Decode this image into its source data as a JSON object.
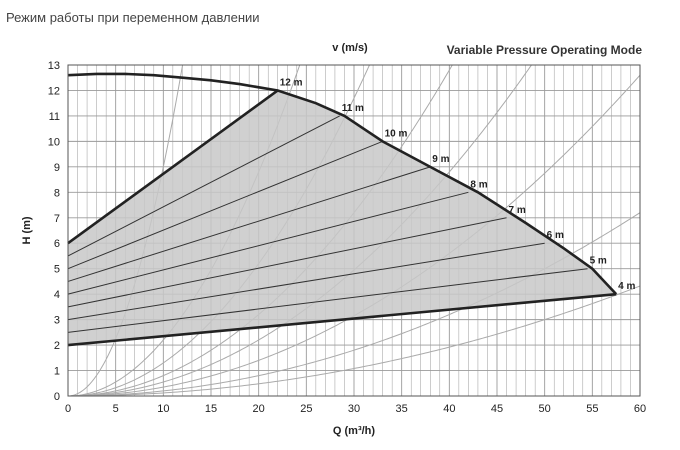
{
  "header": {
    "caption": "Режим работы при переменном давлении",
    "mode_title": "Variable Pressure Operating Mode"
  },
  "chart_data": {
    "type": "line",
    "xlabel": "Q (m³/h)",
    "ylabel": "H (m)",
    "top_axis_label": "v (m/s)",
    "xlim": [
      0,
      60
    ],
    "ylim": [
      0,
      13
    ],
    "x_ticks": [
      0,
      5,
      10,
      15,
      20,
      25,
      30,
      35,
      40,
      45,
      50,
      55,
      60
    ],
    "y_ticks": [
      0,
      1,
      2,
      3,
      4,
      5,
      6,
      7,
      8,
      9,
      10,
      11,
      12,
      13
    ],
    "grid": true,
    "max_curve": {
      "x": [
        0,
        3,
        6,
        9,
        12,
        15,
        18,
        22,
        26,
        29,
        33,
        38,
        43,
        48,
        52,
        55,
        57.5
      ],
      "y": [
        12.6,
        12.65,
        12.65,
        12.6,
        12.5,
        12.4,
        12.25,
        12.0,
        11.5,
        11.0,
        10.0,
        9.0,
        8.0,
        6.8,
        5.8,
        5.0,
        4.0
      ]
    },
    "upper_limit": {
      "x": [
        0,
        22
      ],
      "y": [
        6.0,
        12.0
      ]
    },
    "lower_limit": {
      "x": [
        0,
        57.5
      ],
      "y": [
        2.0,
        4.0
      ]
    },
    "setpoint_lines": [
      {
        "label": "12 m",
        "end": [
          22,
          12.0
        ],
        "start_y": 6.0
      },
      {
        "label": "11 m",
        "end": [
          28.5,
          11.0
        ],
        "start_y": 5.5
      },
      {
        "label": "10 m",
        "end": [
          33,
          10.0
        ],
        "start_y": 5.0
      },
      {
        "label": "9 m",
        "end": [
          38,
          9.0
        ],
        "start_y": 4.5
      },
      {
        "label": "8 m",
        "end": [
          42,
          8.0
        ],
        "start_y": 4.0
      },
      {
        "label": "7 m",
        "end": [
          46,
          7.0
        ],
        "start_y": 3.5
      },
      {
        "label": "6 m",
        "end": [
          50,
          6.0
        ],
        "start_y": 3.0
      },
      {
        "label": "5 m",
        "end": [
          54.5,
          5.0
        ],
        "start_y": 2.5
      },
      {
        "label": "4 m",
        "end": [
          57.5,
          4.0
        ],
        "start_y": 2.0
      }
    ],
    "system_curve_k": [
      0.09,
      0.022,
      0.013,
      0.008,
      0.0055,
      0.0035,
      0.002,
      0.0012
    ],
    "colors": {
      "fill": "#c8c8c8",
      "envelope": "#222222",
      "grid": "#9a9a9a",
      "system_curves": "#aaaaaa",
      "setpoint_lines": "#333333"
    }
  }
}
